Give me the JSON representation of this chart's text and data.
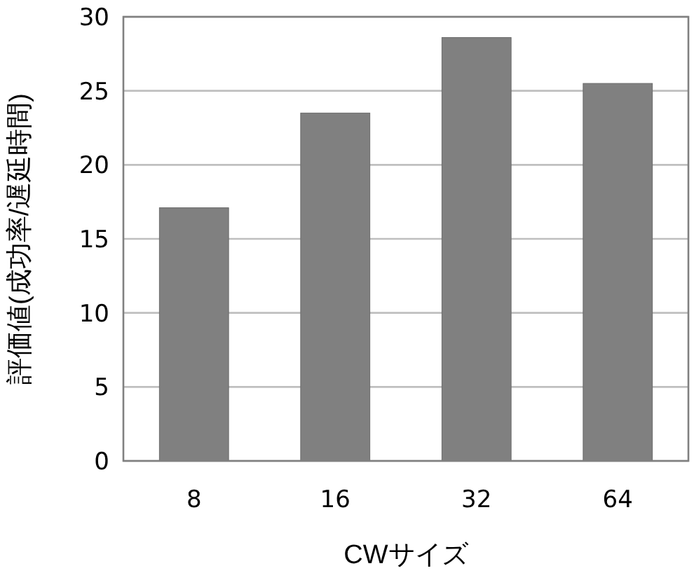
{
  "chart_data": {
    "type": "bar",
    "xlabel": "CWサイズ",
    "ylabel": "評価値(成功率/遅延時間)",
    "categories": [
      "8",
      "16",
      "32",
      "64"
    ],
    "values": [
      17.1,
      23.5,
      28.6,
      25.5
    ],
    "color": "#808080",
    "ylim": [
      0,
      30
    ],
    "yticks": [
      0,
      5,
      10,
      15,
      20,
      25,
      30
    ],
    "grid": "y"
  }
}
